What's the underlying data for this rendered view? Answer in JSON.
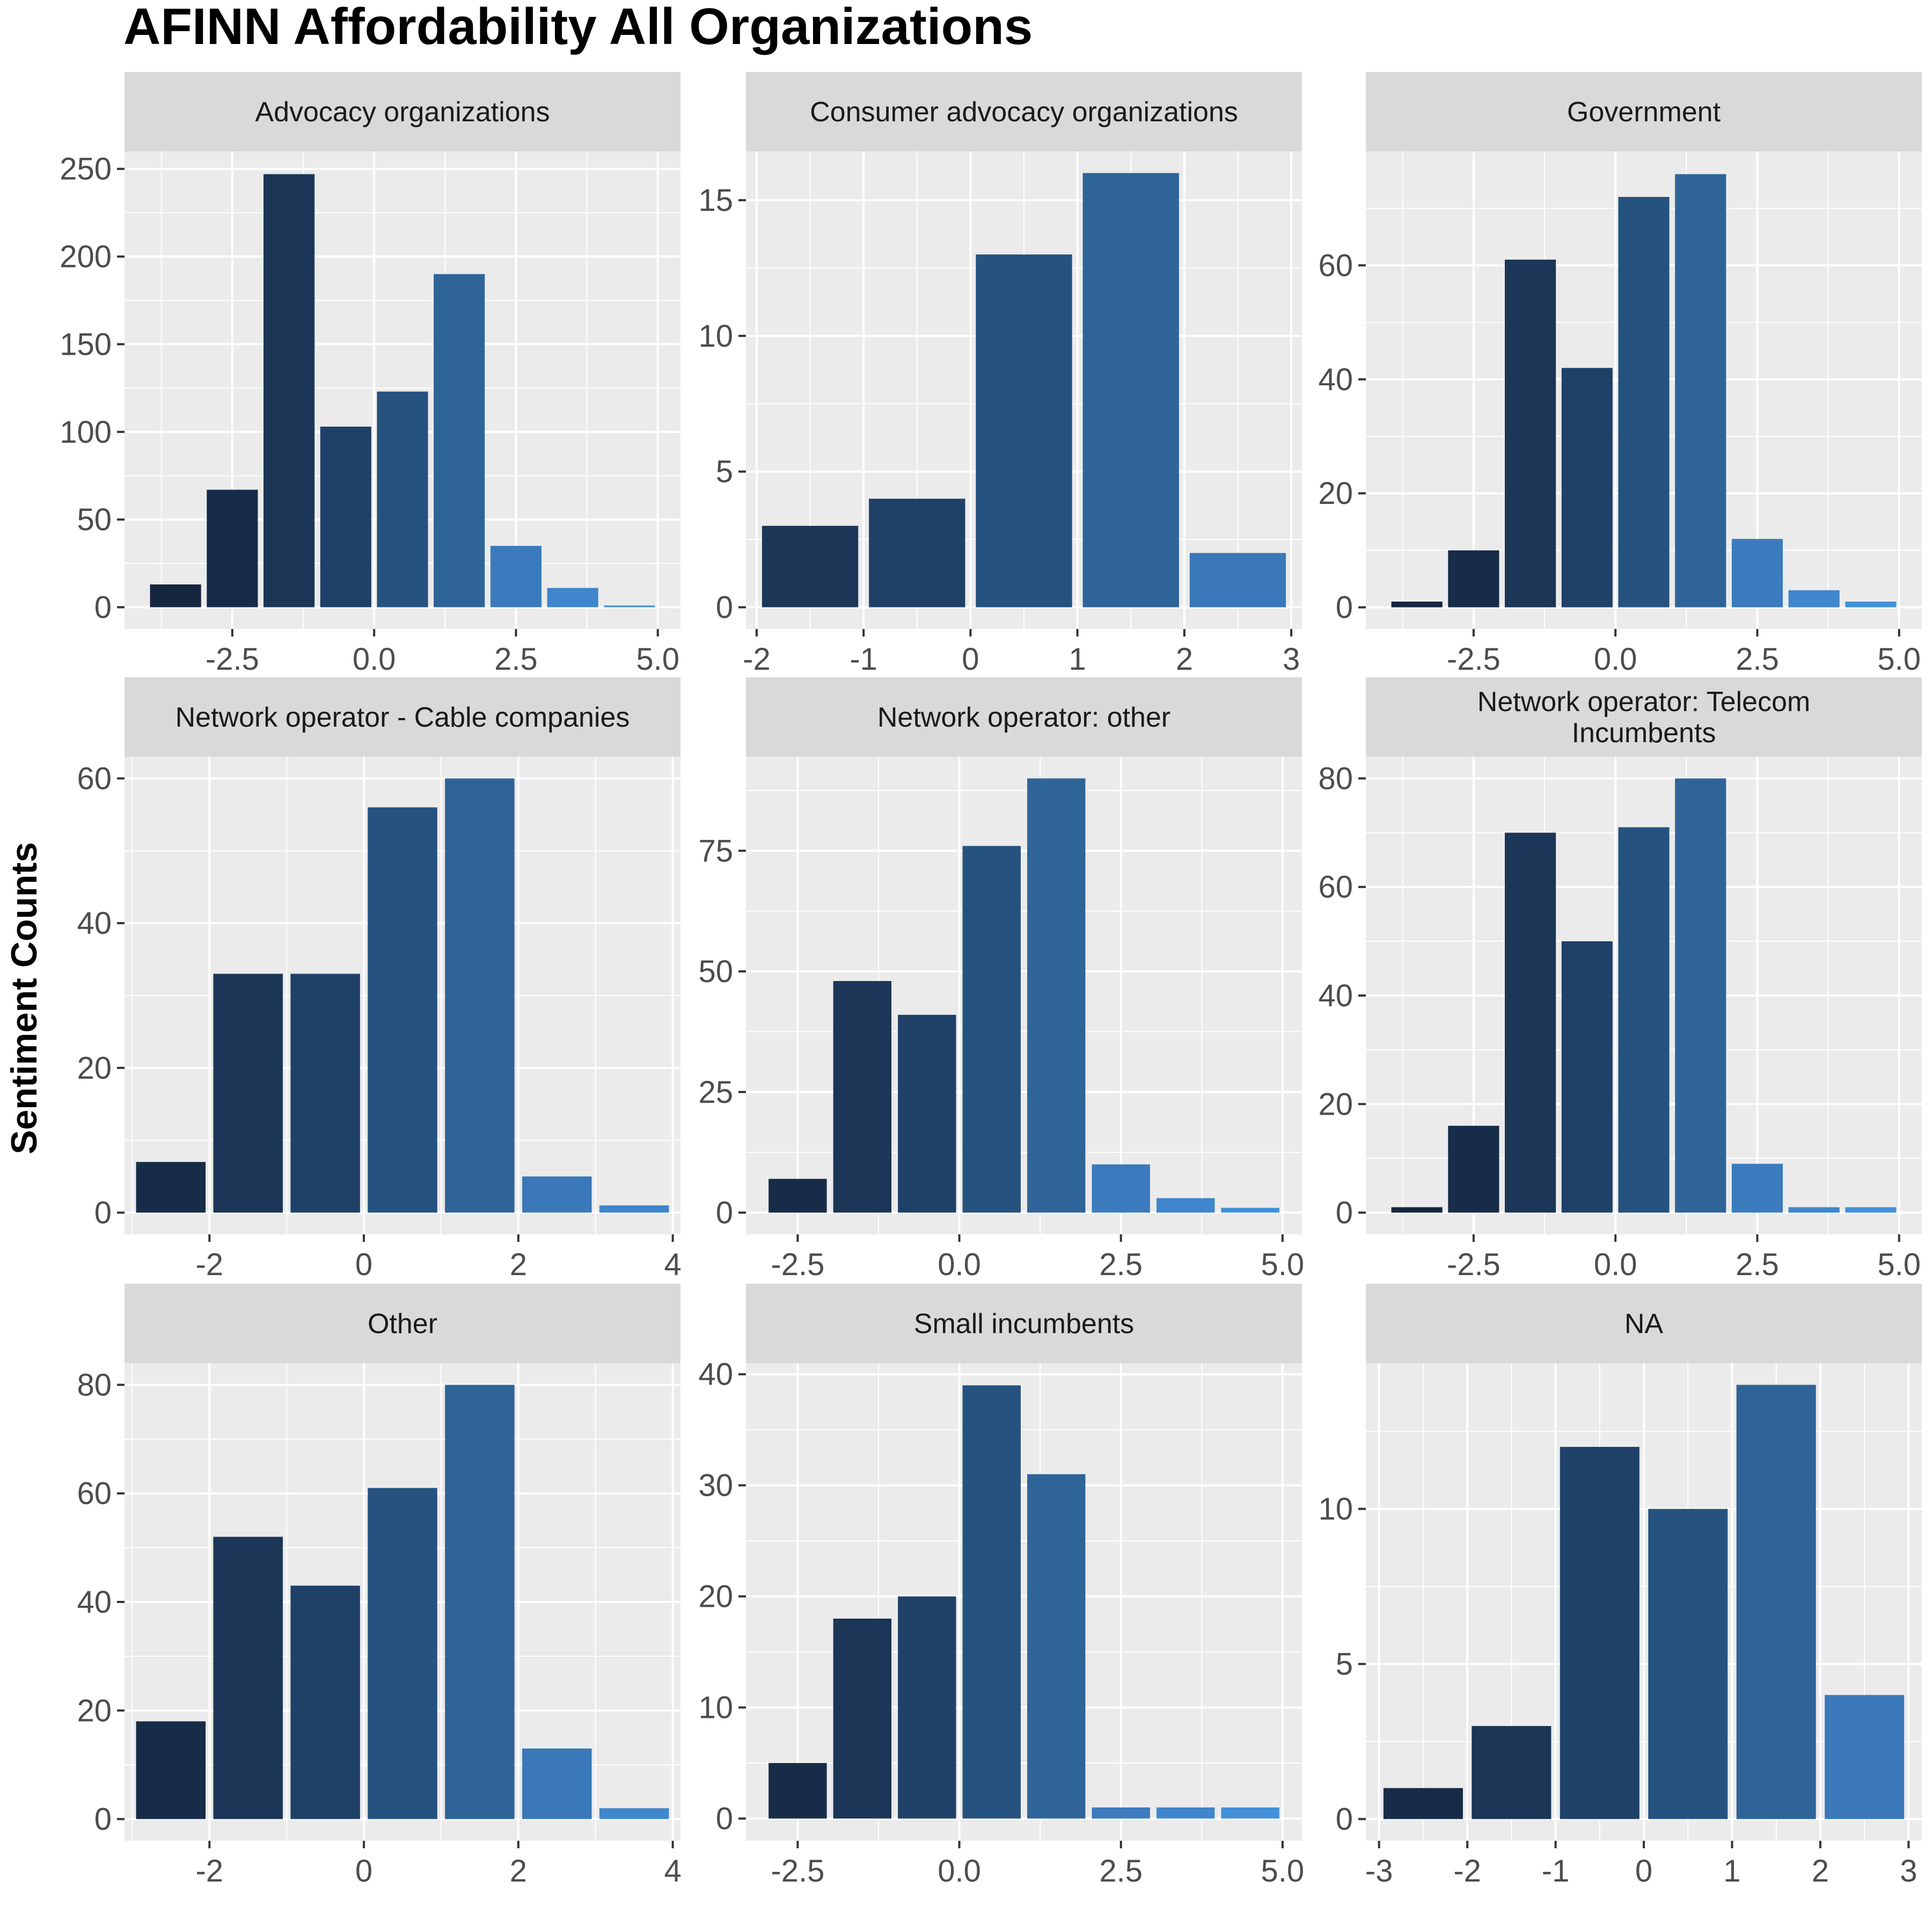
{
  "chart_data": {
    "type": "bar",
    "title": "AFINN Affordability All Organizations",
    "ylabel": "Sentiment Counts",
    "xlabel": "",
    "grid": true,
    "legend": "none",
    "facets": [
      {
        "name": "Advocacy organizations",
        "title_lines": [
          "Advocacy organizations"
        ],
        "x": [
          -3.5,
          -2.5,
          -1.5,
          -0.5,
          0.5,
          1.5,
          2.5,
          3.5,
          4.5
        ],
        "values": [
          13,
          67,
          247,
          103,
          123,
          190,
          35,
          11,
          1
        ],
        "colors": [
          "#15263f",
          "#172c48",
          "#1b3656",
          "#1f4168",
          "#26527f",
          "#2f6499",
          "#3b7bbd",
          "#3f86cc",
          "#4390d9"
        ],
        "xlim": [
          -4.4,
          5.4
        ],
        "ylim": [
          -12.4,
          260
        ],
        "xticks": [
          -2.5,
          0,
          2.5,
          5
        ],
        "xtick_labels": [
          "-2.5",
          "0.0",
          "2.5",
          "5.0"
        ],
        "yticks": [
          0,
          50,
          100,
          150,
          200,
          250
        ],
        "ytick_labels": [
          "0",
          "50",
          "100",
          "150",
          "200",
          "250"
        ]
      },
      {
        "name": "Consumer advocacy organizations",
        "title_lines": [
          "Consumer advocacy organizations"
        ],
        "x": [
          -1.5,
          -0.5,
          0.5,
          1.5,
          2.5
        ],
        "values": [
          3,
          4,
          13,
          16,
          2
        ],
        "colors": [
          "#1b3656",
          "#1f4168",
          "#26527f",
          "#2f6499",
          "#3a78b9"
        ],
        "xlim": [
          -2.1,
          3.1
        ],
        "ylim": [
          -0.8,
          16.8
        ],
        "xticks": [
          -2,
          -1,
          0,
          1,
          2,
          3
        ],
        "xtick_labels": [
          "-2",
          "-1",
          "0",
          "1",
          "2",
          "3"
        ],
        "yticks": [
          0,
          5,
          10,
          15
        ],
        "ytick_labels": [
          "0",
          "5",
          "10",
          "15"
        ]
      },
      {
        "name": "Government",
        "title_lines": [
          "Government"
        ],
        "x": [
          -3.5,
          -2.5,
          -1.5,
          -0.5,
          0.5,
          1.5,
          2.5,
          3.5,
          4.5
        ],
        "values": [
          1,
          10,
          61,
          42,
          72,
          76,
          12,
          3,
          1
        ],
        "colors": [
          "#15263f",
          "#172c48",
          "#1b3656",
          "#1f4168",
          "#26527f",
          "#2f6499",
          "#3b7bbd",
          "#3f86cc",
          "#4390d9"
        ],
        "xlim": [
          -4.4,
          5.4
        ],
        "ylim": [
          -3.8,
          80
        ],
        "xticks": [
          -2.5,
          0,
          2.5,
          5
        ],
        "xtick_labels": [
          "-2.5",
          "0.0",
          "2.5",
          "5.0"
        ],
        "yticks": [
          0,
          20,
          40,
          60
        ],
        "ytick_labels": [
          "0",
          "20",
          "40",
          "60"
        ]
      },
      {
        "name": "Network operator - Cable companies",
        "title_lines": [
          "Network operator - Cable companies"
        ],
        "x": [
          -2.5,
          -1.5,
          -0.5,
          0.5,
          1.5,
          2.5,
          3.5
        ],
        "values": [
          7,
          33,
          33,
          56,
          60,
          5,
          1
        ],
        "colors": [
          "#172c48",
          "#1b3656",
          "#1f4168",
          "#26527f",
          "#2f6499",
          "#3a78b9",
          "#3f86cc"
        ],
        "xlim": [
          -3.1,
          4.1
        ],
        "ylim": [
          -3,
          63
        ],
        "xticks": [
          -2,
          0,
          2,
          4
        ],
        "xtick_labels": [
          "-2",
          "0",
          "2",
          "4"
        ],
        "yticks": [
          0,
          20,
          40,
          60
        ],
        "ytick_labels": [
          "0",
          "20",
          "40",
          "60"
        ]
      },
      {
        "name": "Network operator: other",
        "title_lines": [
          "Network operator: other"
        ],
        "x": [
          -2.5,
          -1.5,
          -0.5,
          0.5,
          1.5,
          2.5,
          3.5,
          4.5
        ],
        "values": [
          7,
          48,
          41,
          76,
          90,
          10,
          3,
          1
        ],
        "colors": [
          "#172c48",
          "#1b3656",
          "#1f4168",
          "#26527f",
          "#2f6499",
          "#3b7bbd",
          "#3f86cc",
          "#4390d9"
        ],
        "xlim": [
          -3.3,
          5.3
        ],
        "ylim": [
          -4.5,
          94.5
        ],
        "xticks": [
          -2.5,
          0,
          2.5,
          5
        ],
        "xtick_labels": [
          "-2.5",
          "0.0",
          "2.5",
          "5.0"
        ],
        "yticks": [
          0,
          25,
          50,
          75
        ],
        "ytick_labels": [
          "0",
          "25",
          "50",
          "75"
        ]
      },
      {
        "name": "Network operator: Telecom Incumbents",
        "title_lines": [
          "Network operator: Telecom",
          "Incumbents"
        ],
        "x": [
          -3.5,
          -2.5,
          -1.5,
          -0.5,
          0.5,
          1.5,
          2.5,
          3.5,
          4.5
        ],
        "values": [
          1,
          16,
          70,
          50,
          71,
          80,
          9,
          1,
          1
        ],
        "colors": [
          "#15263f",
          "#172c48",
          "#1b3656",
          "#1f4168",
          "#26527f",
          "#2f6499",
          "#3b7bbd",
          "#3f86cc",
          "#4390d9"
        ],
        "xlim": [
          -4.4,
          5.4
        ],
        "ylim": [
          -4,
          84
        ],
        "xticks": [
          -2.5,
          0,
          2.5,
          5
        ],
        "xtick_labels": [
          "-2.5",
          "0.0",
          "2.5",
          "5.0"
        ],
        "yticks": [
          0,
          20,
          40,
          60,
          80
        ],
        "ytick_labels": [
          "0",
          "20",
          "40",
          "60",
          "80"
        ]
      },
      {
        "name": "Other",
        "title_lines": [
          "Other"
        ],
        "x": [
          -2.5,
          -1.5,
          -0.5,
          0.5,
          1.5,
          2.5,
          3.5
        ],
        "values": [
          18,
          52,
          43,
          61,
          80,
          13,
          2
        ],
        "colors": [
          "#172c48",
          "#1b3656",
          "#1f4168",
          "#26527f",
          "#2f6499",
          "#3a78b9",
          "#3f86cc"
        ],
        "xlim": [
          -3.1,
          4.1
        ],
        "ylim": [
          -4,
          84
        ],
        "xticks": [
          -2,
          0,
          2,
          4
        ],
        "xtick_labels": [
          "-2",
          "0",
          "2",
          "4"
        ],
        "yticks": [
          0,
          20,
          40,
          60,
          80
        ],
        "ytick_labels": [
          "0",
          "20",
          "40",
          "60",
          "80"
        ]
      },
      {
        "name": "Small incumbents",
        "title_lines": [
          "Small incumbents"
        ],
        "x": [
          -2.5,
          -1.5,
          -0.5,
          0.5,
          1.5,
          2.5,
          3.5,
          4.5
        ],
        "values": [
          5,
          18,
          20,
          39,
          31,
          1,
          1,
          1
        ],
        "colors": [
          "#172c48",
          "#1b3656",
          "#1f4168",
          "#26527f",
          "#2f6499",
          "#3b7bbd",
          "#3f86cc",
          "#4390d9"
        ],
        "xlim": [
          -3.3,
          5.3
        ],
        "ylim": [
          -2,
          41
        ],
        "xticks": [
          -2.5,
          0,
          2.5,
          5
        ],
        "xtick_labels": [
          "-2.5",
          "0.0",
          "2.5",
          "5.0"
        ],
        "yticks": [
          0,
          10,
          20,
          30,
          40
        ],
        "ytick_labels": [
          "0",
          "10",
          "20",
          "30",
          "40"
        ]
      },
      {
        "name": "NA",
        "title_lines": [
          "NA"
        ],
        "x": [
          -2.5,
          -1.5,
          -0.5,
          0.5,
          1.5,
          2.5
        ],
        "values": [
          1,
          3,
          12,
          10,
          14,
          4
        ],
        "colors": [
          "#172c48",
          "#1b3656",
          "#1f4168",
          "#26527f",
          "#2f6499",
          "#3a78b9"
        ],
        "xlim": [
          -3.15,
          3.15
        ],
        "ylim": [
          -0.7,
          14.7
        ],
        "xticks": [
          -3,
          -2,
          -1,
          0,
          1,
          2,
          3
        ],
        "xtick_labels": [
          "-3",
          "-2",
          "-1",
          "0",
          "1",
          "2",
          "3"
        ],
        "yticks": [
          0,
          5,
          10
        ],
        "ytick_labels": [
          "0",
          "5",
          "10"
        ]
      }
    ]
  }
}
